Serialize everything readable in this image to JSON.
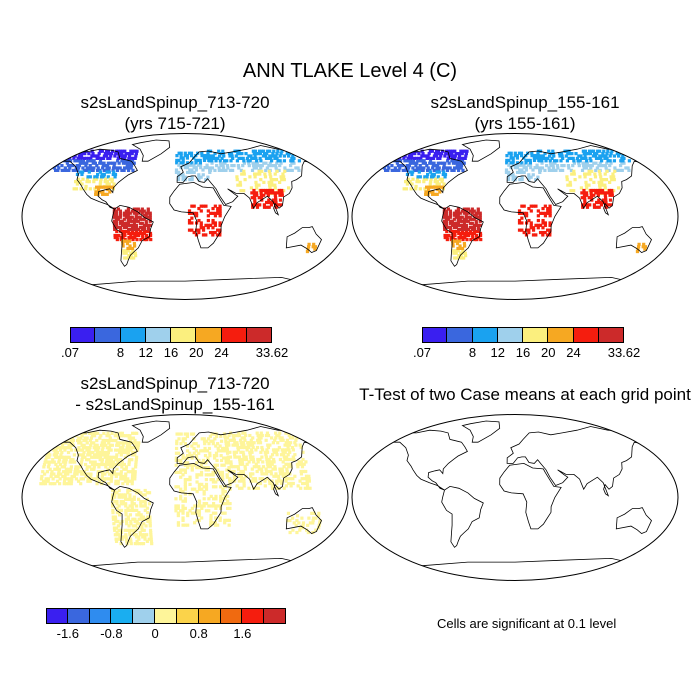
{
  "figure": {
    "title": "ANN TLAKE Level 4 (C)",
    "panels": [
      {
        "id": "p1",
        "title_line1": "s2sLandSpinup_713-720",
        "title_line2": "(yrs 715-721)"
      },
      {
        "id": "p2",
        "title_line1": "s2sLandSpinup_155-161",
        "title_line2": "(yrs 155-161)"
      },
      {
        "id": "p3",
        "title_line1": "s2sLandSpinup_713-720",
        "title_line2": "- s2sLandSpinup_155-161"
      },
      {
        "id": "p4",
        "title_line1": "T-Test of two Case means at each grid point"
      }
    ],
    "note": "Cells are significant at 0.1 level"
  },
  "colorbars": {
    "abs": {
      "colors": [
        "#3a1ff0",
        "#3a67de",
        "#1aa2f0",
        "#9fd0ec",
        "#fbef7e",
        "#f6a822",
        "#f51d0e",
        "#cc2a2a"
      ],
      "labels": [
        ".07",
        "8",
        "12",
        "16",
        "20",
        "24",
        "33.62"
      ],
      "label_boundaries": [
        0,
        2,
        3,
        4,
        5,
        6,
        8
      ]
    },
    "diff": {
      "colors": [
        "#3a1ff0",
        "#3a67de",
        "#2f8cef",
        "#1aaef0",
        "#9fd0ec",
        "#fef59a",
        "#fbd34a",
        "#f6a822",
        "#f06a10",
        "#f51d0e",
        "#cc2a2a"
      ],
      "labels": [
        "-1.6",
        "-0.8",
        "0",
        "0.8",
        "1.6"
      ],
      "label_boundaries": [
        1,
        3,
        5,
        7,
        9
      ]
    }
  }
}
